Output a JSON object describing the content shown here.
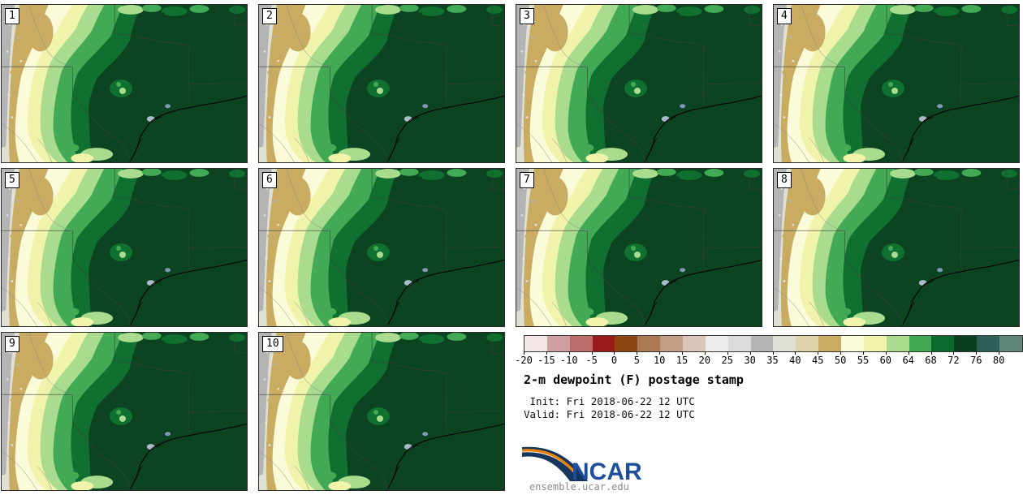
{
  "panels": [
    {
      "label": "1"
    },
    {
      "label": "2"
    },
    {
      "label": "3"
    },
    {
      "label": "4"
    },
    {
      "label": "5"
    },
    {
      "label": "6"
    },
    {
      "label": "7"
    },
    {
      "label": "8"
    },
    {
      "label": "9"
    },
    {
      "label": "10"
    }
  ],
  "legend": {
    "title": "2-m dewpoint (F) postage stamp",
    "init_line": " Init: Fri 2018-06-22 12 UTC",
    "valid_line": "Valid: Fri 2018-06-22 12 UTC"
  },
  "logo": {
    "text": "NCAR",
    "url": "ensemble.ucar.edu",
    "navy": "#16365f",
    "text_blue": "#1d4f9c",
    "orange": "#ef8200"
  },
  "chart_data": {
    "type": "heatmap",
    "subtype": "ensemble postage-stamp filled-contour maps",
    "title": "2-m dewpoint (F) postage stamp",
    "init": "Fri 2018-06-22 12 UTC",
    "valid": "Fri 2018-06-22 12 UTC",
    "units": "F",
    "n_members": 10,
    "member_labels": [
      "1",
      "2",
      "3",
      "4",
      "5",
      "6",
      "7",
      "8",
      "9",
      "10"
    ],
    "legend_position": "bottom-right",
    "colorbar": {
      "orientation": "horizontal",
      "tick_labels": [
        "-20",
        "-15",
        "-10",
        "-5",
        "0",
        "5",
        "10",
        "15",
        "20",
        "25",
        "30",
        "35",
        "40",
        "45",
        "50",
        "55",
        "60",
        "64",
        "68",
        "72",
        "76",
        "80"
      ],
      "colors": [
        "#f3e6e6",
        "#cf9e9e",
        "#bd6b6b",
        "#9b1b1b",
        "#8c4513",
        "#aa7a52",
        "#c49e84",
        "#d9c6b8",
        "#ececec",
        "#dbdbdb",
        "#b4b4b4",
        "#dee0d3",
        "#ded3ab",
        "#c9ac61",
        "#fbfbda",
        "#f0f4ab",
        "#a9dc8e",
        "#42a955",
        "#0b6b2d",
        "#0b3d1f",
        "#2d5f57",
        "#608579"
      ]
    },
    "map_region_hint": "South-central US: Texas, Oklahoma, Louisiana, New Mexico, Gulf coast; high dewpoints (dark green) east, dry (gray/tan) west"
  }
}
